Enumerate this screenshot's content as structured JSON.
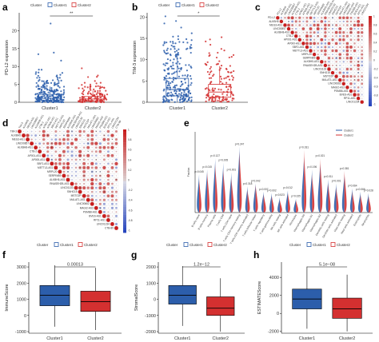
{
  "chart_data": [
    {
      "panel": "a",
      "type": "box",
      "legend": {
        "title": "Cluster",
        "entries": [
          "Cluster1",
          "Cluster2"
        ]
      },
      "ylabel": "PD-L2 expression",
      "ylim": [
        0,
        25
      ],
      "yticks": [
        0,
        5,
        10,
        15,
        20
      ],
      "significance": "**",
      "series": [
        {
          "name": "Cluster1",
          "color": "#2c5eab",
          "q1": 0.6,
          "median": 1.1,
          "q3": 2.2,
          "whisker_low": 0,
          "whisker_high": 4.4,
          "max_point": 22
        },
        {
          "name": "Cluster2",
          "color": "#d43030",
          "q1": 0.4,
          "median": 0.9,
          "q3": 1.6,
          "whisker_low": 0,
          "whisker_high": 3.3,
          "max_point": 9.5
        }
      ]
    },
    {
      "panel": "b",
      "type": "box",
      "legend": {
        "title": "Cluster",
        "entries": [
          "Cluster1",
          "Cluster2"
        ]
      },
      "ylabel": "TIM-3 expression",
      "ylim": [
        0,
        21
      ],
      "yticks": [
        0,
        5,
        10,
        15,
        20
      ],
      "significance": "*",
      "series": [
        {
          "name": "Cluster1",
          "color": "#2c5eab",
          "q1": 1.5,
          "median": 3.0,
          "q3": 5.6,
          "whisker_low": 0,
          "whisker_high": 11.5,
          "max_point": 18.5
        },
        {
          "name": "Cluster2",
          "color": "#d43030",
          "q1": 1.2,
          "median": 2.4,
          "q3": 4.2,
          "whisker_low": 0,
          "whisker_high": 8.5,
          "max_point": 13.5
        }
      ]
    },
    {
      "panel": "c",
      "type": "heatmap",
      "legend_ticks": [
        "1",
        "0.8",
        "0.6",
        "0.4",
        "0.2",
        "0",
        "-0.2",
        "-0.4",
        "-0.6",
        "-0.8",
        "-1"
      ],
      "labels": [
        "PD-L2",
        "ALKBH5",
        "MEG3-AS1",
        "LINC00857",
        "ALKBH8-AS1",
        "CTB-2",
        "AP001-AS1",
        "AP000-AS1",
        "SBF2-AS1",
        "METTL3-AS1",
        "MRPL20",
        "SERPINB9",
        "ALKBH5-AS1",
        "RNASEH2B-AS1",
        "LINC01133",
        "SNHG15",
        "MSTO2P",
        "MALAT1-AS1",
        "LINC00662",
        "MAGI2-AS3",
        "PSMB8-AS1",
        "BVES-AS1",
        "RP11-AS1",
        "LINC01234"
      ]
    },
    {
      "panel": "d",
      "type": "heatmap",
      "legend_ticks": [
        "1",
        "0.8",
        "0.6",
        "0.4",
        "0.2",
        "0",
        "-0.2",
        "-0.4",
        "-0.6",
        "-0.8",
        "-1"
      ],
      "labels": [
        "TIM-3",
        "ALKBH5",
        "MEG3-AS1",
        "LINC00857",
        "ALKBH8-AS1",
        "CTB-2",
        "AP001-AS1",
        "AP000-AS1",
        "SBF2-AS1",
        "METTL3-AS1",
        "MRPL20",
        "SERPINB9",
        "ALKBH5-AS1",
        "RNASEH2B-AS1",
        "LINC01133",
        "SNHG15",
        "MSTO2P",
        "MALAT1-AS1",
        "LINC00662",
        "MAGI2-AS3",
        "PSMB8-AS1",
        "BVES-AS1",
        "RP11-AS1",
        "LINC01234",
        "CTB-89"
      ]
    },
    {
      "panel": "e",
      "type": "violin",
      "legend": {
        "entries": [
          "Cluster1",
          "Cluster2"
        ]
      },
      "ylabel": "Fraction",
      "categories": [
        "B cells naive",
        "B cells memory",
        "Plasma cells",
        "T cells CD8",
        "T cells CD4 naive",
        "T cells CD4 memory resting",
        "T cells CD4 memory activated",
        "T cells follicular helper",
        "T cells regulatory",
        "T cells gamma delta",
        "NK cells resting",
        "NK cells activated",
        "Monocytes",
        "Macrophages M0",
        "Macrophages M1",
        "Macrophages M2",
        "Dendritic cells resting",
        "Dendritic cells activated",
        "Mast cells resting",
        "Mast cells activated",
        "Eosinophils",
        "Neutrophils"
      ],
      "pvalues": [
        "p=0.045",
        "p=0.015",
        "p=0.127",
        "p=0.005",
        "p=0.001",
        "p=0.247",
        "p=0.318",
        "p=0.042",
        "p=0.007",
        "p=0.002",
        "p=0.523",
        "p=0.012",
        "p=0.025",
        "p=0.031",
        "p=0.196",
        "p=0.021",
        "p=0.011",
        "p=0.001",
        "p=0.381",
        "p=0.064",
        "p=0.066",
        "p=0.028"
      ],
      "heights1": [
        0.55,
        0.62,
        0.78,
        0.72,
        0.58,
        0.95,
        0.38,
        0.42,
        0.3,
        0.28,
        0.22,
        0.32,
        0.2,
        0.8,
        0.62,
        0.7,
        0.48,
        0.42,
        0.55,
        0.35,
        0.3,
        0.28
      ],
      "heights2": [
        0.48,
        0.58,
        0.7,
        0.62,
        0.5,
        0.88,
        0.32,
        0.4,
        0.26,
        0.24,
        0.18,
        0.28,
        0.18,
        0.9,
        0.55,
        0.78,
        0.42,
        0.36,
        0.6,
        0.3,
        0.26,
        0.24
      ]
    },
    {
      "panel": "f",
      "type": "box",
      "legend": {
        "title": "Cluster",
        "entries": [
          "Cluster1",
          "Cluster2"
        ]
      },
      "ylabel": "ImmuneScore",
      "ylim": [
        -1100,
        3300
      ],
      "yticks": [
        -1000,
        0,
        1000,
        2000,
        3000
      ],
      "xlabels": [
        "Cluster1",
        "Cluster2"
      ],
      "pvalue": "0.00013",
      "series": [
        {
          "name": "Cluster1",
          "color": "#2c5eab",
          "q1": 600,
          "median": 1250,
          "q3": 1850,
          "whisker_low": -700,
          "whisker_high": 3100
        },
        {
          "name": "Cluster2",
          "color": "#d43030",
          "q1": 250,
          "median": 850,
          "q3": 1500,
          "whisker_low": -900,
          "whisker_high": 2950
        }
      ]
    },
    {
      "panel": "g",
      "type": "box",
      "legend": {
        "title": "Cluster",
        "entries": [
          "Cluster1",
          "Cluster2"
        ]
      },
      "ylabel": "StromalScore",
      "ylim": [
        -2100,
        2300
      ],
      "yticks": [
        -2000,
        -1000,
        0,
        1000,
        2000
      ],
      "xlabels": [
        "Cluster1",
        "Cluster2"
      ],
      "pvalue": "1.2e−12",
      "series": [
        {
          "name": "Cluster1",
          "color": "#2c5eab",
          "q1": -300,
          "median": 250,
          "q3": 850,
          "whisker_low": -1650,
          "whisker_high": 2050
        },
        {
          "name": "Cluster2",
          "color": "#d43030",
          "q1": -1000,
          "median": -550,
          "q3": 150,
          "whisker_low": -2000,
          "whisker_high": 1300
        }
      ]
    },
    {
      "panel": "h",
      "type": "box",
      "legend": {
        "title": "Cluster",
        "entries": [
          "Cluster1",
          "Cluster2"
        ]
      },
      "ylabel": "ESTIMATEScore",
      "ylim": [
        -2200,
        5700
      ],
      "yticks": [
        -2000,
        0,
        2000,
        4000
      ],
      "xlabels": [
        "Cluster1",
        "Cluster2"
      ],
      "pvalue": "5.1e−08",
      "series": [
        {
          "name": "Cluster1",
          "color": "#2c5eab",
          "q1": 500,
          "median": 1600,
          "q3": 2700,
          "whisker_low": -1700,
          "whisker_high": 5200
        },
        {
          "name": "Cluster2",
          "color": "#d43030",
          "q1": -550,
          "median": 500,
          "q3": 1700,
          "whisker_low": -2000,
          "whisker_high": 4300
        }
      ]
    }
  ],
  "panel_letters": [
    "a",
    "b",
    "c",
    "d",
    "e",
    "f",
    "g",
    "h"
  ],
  "colors": {
    "cluster1": "#2c5eab",
    "cluster2": "#d43030"
  }
}
